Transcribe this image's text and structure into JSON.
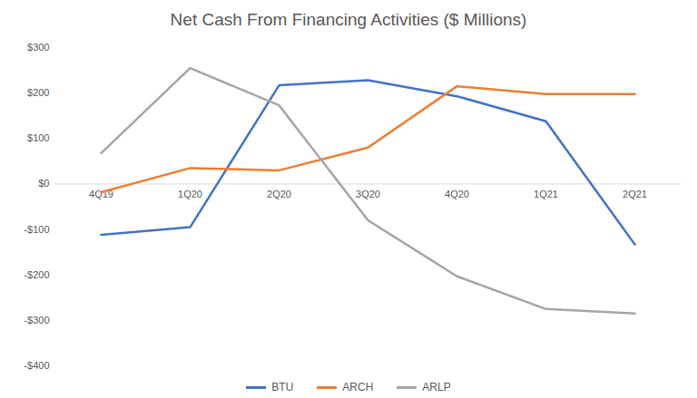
{
  "chart_data": {
    "type": "line",
    "title": "Net Cash From Financing Activities ($ Millions)",
    "categories": [
      "4Q19",
      "1Q20",
      "2Q20",
      "3Q20",
      "4Q20",
      "1Q21",
      "2Q21"
    ],
    "series": [
      {
        "name": "BTU",
        "color": "#4472c4",
        "values": [
          -112,
          -95,
          217,
          228,
          193,
          138,
          -133
        ]
      },
      {
        "name": "ARCH",
        "color": "#ed7d31",
        "values": [
          -18,
          35,
          30,
          80,
          215,
          198,
          198
        ]
      },
      {
        "name": "ARLP",
        "color": "#a5a5a5",
        "values": [
          68,
          255,
          173,
          -80,
          -203,
          -275,
          -285
        ]
      }
    ],
    "ylim": [
      -400,
      300
    ],
    "yticks": [
      {
        "value": -400,
        "label": "-$400"
      },
      {
        "value": -300,
        "label": "-$300"
      },
      {
        "value": -200,
        "label": "-$200"
      },
      {
        "value": -100,
        "label": "-$100"
      },
      {
        "value": 0,
        "label": "$0"
      },
      {
        "value": 100,
        "label": "$100"
      },
      {
        "value": 200,
        "label": "$200"
      },
      {
        "value": 300,
        "label": "$300"
      }
    ],
    "grid": false,
    "legend": "bottom"
  }
}
